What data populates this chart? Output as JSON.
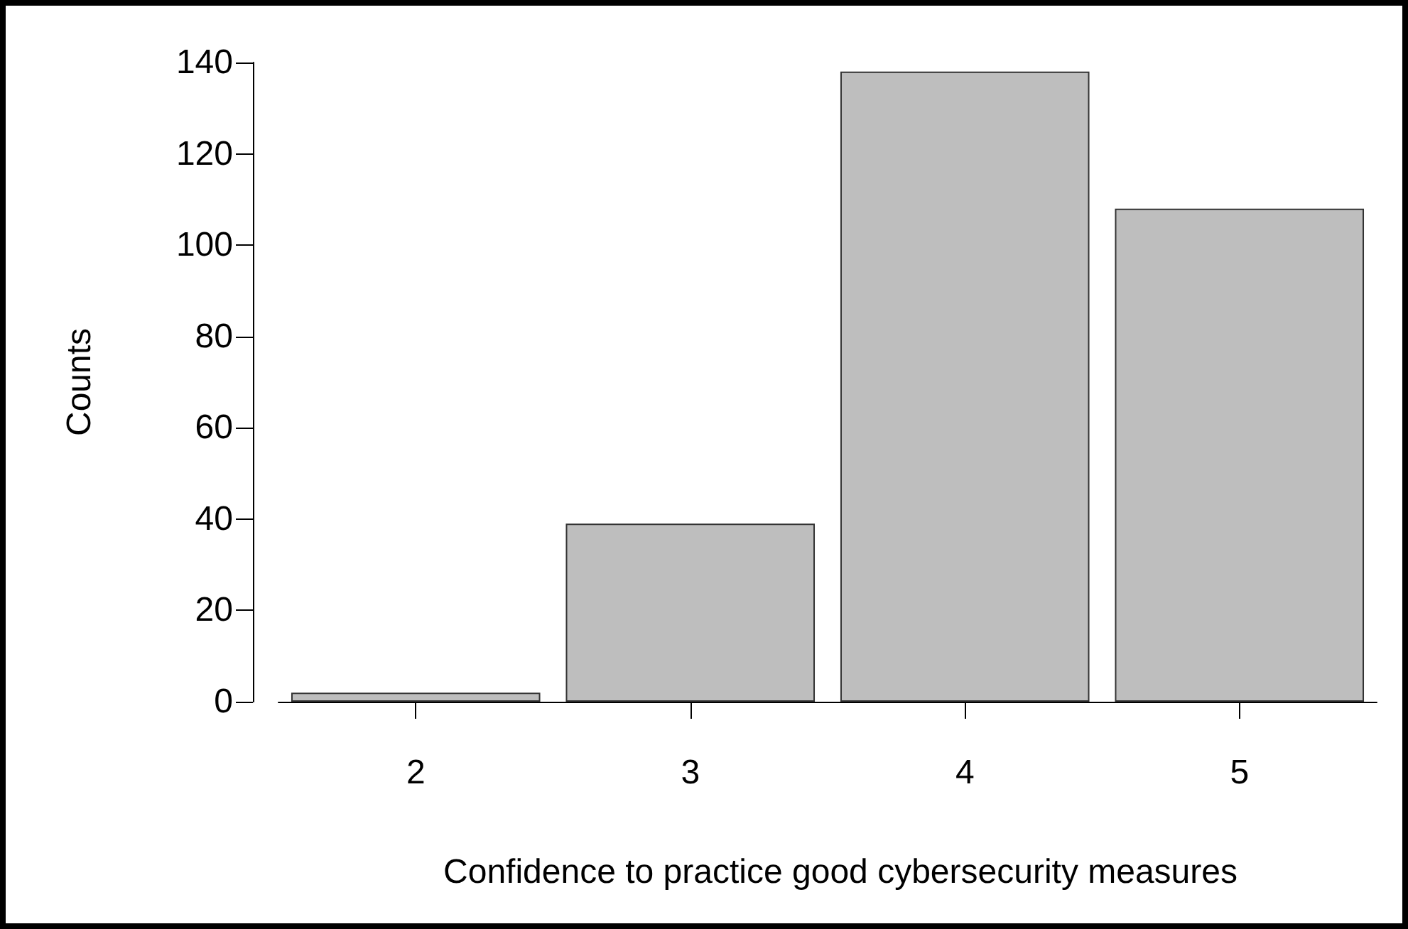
{
  "chart_data": {
    "type": "bar",
    "xlabel": "Confidence to practice good cybersecurity measures",
    "ylabel": "Counts",
    "categories": [
      "2",
      "3",
      "4",
      "5"
    ],
    "values": [
      2,
      39,
      138,
      108
    ],
    "color": "#bebebe",
    "ylim": [
      0,
      140
    ],
    "yticks": [
      0,
      20,
      40,
      60,
      80,
      100,
      120,
      140
    ]
  }
}
